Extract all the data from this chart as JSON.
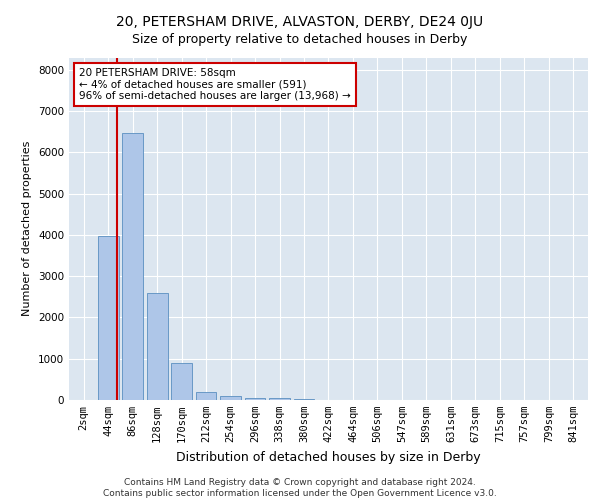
{
  "title1": "20, PETERSHAM DRIVE, ALVASTON, DERBY, DE24 0JU",
  "title2": "Size of property relative to detached houses in Derby",
  "xlabel": "Distribution of detached houses by size in Derby",
  "ylabel": "Number of detached properties",
  "bins": [
    "2sqm",
    "44sqm",
    "86sqm",
    "128sqm",
    "170sqm",
    "212sqm",
    "254sqm",
    "296sqm",
    "338sqm",
    "380sqm",
    "422sqm",
    "464sqm",
    "506sqm",
    "547sqm",
    "589sqm",
    "631sqm",
    "673sqm",
    "715sqm",
    "757sqm",
    "799sqm",
    "841sqm"
  ],
  "bar_values": [
    5,
    3980,
    6480,
    2590,
    895,
    200,
    105,
    55,
    55,
    20,
    5,
    0,
    0,
    0,
    0,
    0,
    0,
    0,
    0,
    0,
    0
  ],
  "bar_color": "#aec6e8",
  "bar_edge_color": "#5a8fc0",
  "vline_color": "#cc0000",
  "vline_x": 1.35,
  "annotation_text": "20 PETERSHAM DRIVE: 58sqm\n← 4% of detached houses are smaller (591)\n96% of semi-detached houses are larger (13,968) →",
  "annotation_box_color": "#ffffff",
  "annotation_box_edge": "#cc0000",
  "ylim": [
    0,
    8300
  ],
  "yticks": [
    0,
    1000,
    2000,
    3000,
    4000,
    5000,
    6000,
    7000,
    8000
  ],
  "background_color": "#dce6f0",
  "footer": "Contains HM Land Registry data © Crown copyright and database right 2024.\nContains public sector information licensed under the Open Government Licence v3.0.",
  "title1_fontsize": 10,
  "title2_fontsize": 9,
  "xlabel_fontsize": 9,
  "ylabel_fontsize": 8,
  "tick_fontsize": 7.5,
  "footer_fontsize": 6.5,
  "annot_fontsize": 7.5
}
